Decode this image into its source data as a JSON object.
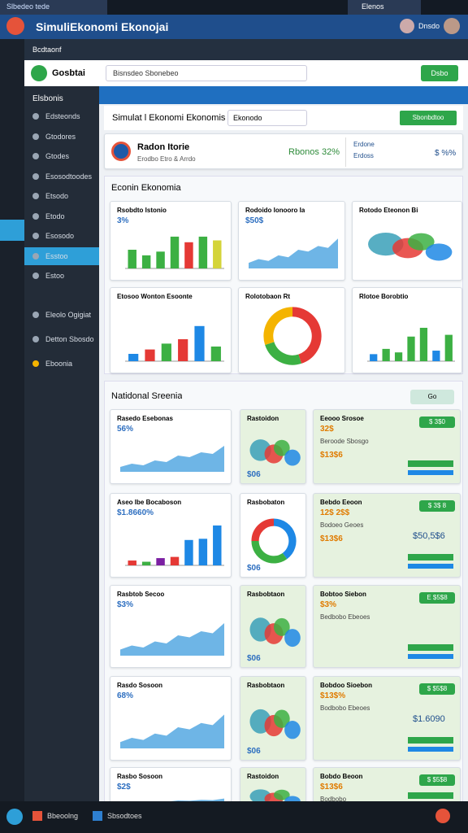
{
  "tab": {
    "title": "Slbedeo tede",
    "right": "Elenos"
  },
  "header": {
    "title": "SimuliEkonomi Ekonojai",
    "user": "Dnsdo"
  },
  "toolbar": {
    "label": "Bcdtaonf",
    "app": "Gosbtai",
    "search": "Bisnsdeo Sbonebeo",
    "button": "Dsbo"
  },
  "sidebar": {
    "title": "Elsbonis",
    "items": [
      "Edsteonds",
      "Gtodores",
      "Gtodes",
      "Esosodtoodes",
      "Etsodo",
      "Etodo",
      "Esosodo",
      "Esstoo",
      "Estoo",
      "Eleolo Ogigiat",
      "Detton Sbosdo",
      "Eboonia"
    ]
  },
  "main": {
    "title": "Simulat l Ekonomi Ekonomis",
    "input": "Ekonodo",
    "button": "Sbonbdtoo",
    "summary": {
      "title": "Radon Itorie",
      "subtitle": "Erodbo Etro & Arrdo",
      "stat": "Rbonos 32%",
      "side": "Erdone",
      "side2": "Erdoss",
      "side_stat": "$ %%"
    }
  },
  "overview": {
    "title": "Econin Ekonomia",
    "cards": [
      {
        "type": "bars",
        "title": "Rsobdto Istonio",
        "stat": "3%",
        "values": [
          20,
          14,
          18,
          34,
          28,
          34,
          30
        ],
        "colors": [
          "#3cb043",
          "#3cb043",
          "#3cb043",
          "#3cb043",
          "#e53935",
          "#3cb043",
          "#d4d43a"
        ],
        "ylim": [
          0,
          40
        ]
      },
      {
        "type": "area",
        "title": "Rodoido Ionooro Ia",
        "stat": "$50$"
      },
      {
        "type": "map",
        "title": "Rotodo Eteonon Bi"
      },
      {
        "type": "bars",
        "title": "Etosoo Wonton Esoonte",
        "values": [
          10,
          16,
          24,
          30,
          48,
          20
        ],
        "colors": [
          "#1e88e5",
          "#e53935",
          "#3cb043",
          "#e53935",
          "#1e88e5",
          "#3cb043"
        ],
        "ylim": [
          0,
          60
        ]
      },
      {
        "type": "donut",
        "title": "Rolotobaon Rt",
        "values": [
          45,
          25,
          30
        ],
        "colors": [
          "#e53935",
          "#3cb043",
          "#f4b400"
        ]
      },
      {
        "type": "bars",
        "title": "Rlotoe Borobtio",
        "values": [
          8,
          14,
          10,
          28,
          38,
          12,
          30
        ],
        "colors": [
          "#1e88e5",
          "#3cb043",
          "#3cb043",
          "#3cb043",
          "#3cb043",
          "#1e88e5",
          "#3cb043"
        ],
        "ylim": [
          0,
          50
        ]
      }
    ]
  },
  "scenarios": {
    "title": "Natidonal Sreenia",
    "badge": "Go",
    "rows": [
      [
        {
          "type": "area",
          "title": "Rasedo Esebonas",
          "stat": "56%"
        },
        {
          "type": "map",
          "title": "Rastoidon",
          "stat": "$06"
        },
        {
          "type": "stats",
          "title": "Eeooo Srosoe",
          "stat": "32$",
          "label": "Beroode Sbosgo",
          "value": "$13$6",
          "pill": "$ 3$0"
        }
      ],
      [
        {
          "type": "bars",
          "title": "Aseo Ibe Bocaboson",
          "stat": "$1.8660%",
          "values": [
            8,
            6,
            12,
            14,
            42,
            44,
            66
          ],
          "colors": [
            "#e53935",
            "#3cb043",
            "#7b1fa2",
            "#e53935",
            "#1e88e5",
            "#1e88e5",
            "#1e88e5"
          ],
          "ylim": [
            0,
            70
          ]
        },
        {
          "type": "donut",
          "title": "Rasbobaton",
          "stat": "$06",
          "values": [
            40,
            35,
            25
          ],
          "colors": [
            "#1e88e5",
            "#3cb043",
            "#e53935"
          ]
        },
        {
          "type": "stats",
          "title": "Bebdo Eeoon",
          "stat": "12$ 2$$",
          "label": "Bodoeo Geoes",
          "value": "$13$6",
          "big": "$50,5$6",
          "pill": "$ 3$ 8"
        }
      ],
      [
        {
          "type": "area",
          "title": "Rasbtob Secoo",
          "stat": "$3%"
        },
        {
          "type": "map",
          "title": "Rasbobtaon",
          "stat": "$06"
        },
        {
          "type": "stats",
          "title": "Bobtoo Siebon",
          "stat": "$3%",
          "label": "Bedbobo Ebeoes",
          "pill": "E $5$8"
        }
      ],
      [
        {
          "type": "area",
          "title": "Rasdo Sosoon",
          "stat": "68%"
        },
        {
          "type": "map",
          "title": "Rasbobtaon",
          "stat": "$06"
        },
        {
          "type": "stats",
          "title": "Bobdoo Sioebon",
          "stat": "$13$%",
          "label": "Bodbobo Ebeoes",
          "big": "$1.6090",
          "pill": "$ $5$8"
        }
      ],
      [
        {
          "type": "area",
          "title": "Rasbo Sosoon",
          "stat": "$2$"
        },
        {
          "type": "map",
          "title": "Rastoidon",
          "stat": "$06"
        },
        {
          "type": "stats",
          "title": "Bobdo Beoon",
          "stat": "$13$6",
          "label": "Bodbobo",
          "pill": "$ $5$8"
        }
      ]
    ]
  },
  "footer": {
    "left": "Bbeoolng",
    "mid": "Sbsodtoes"
  }
}
